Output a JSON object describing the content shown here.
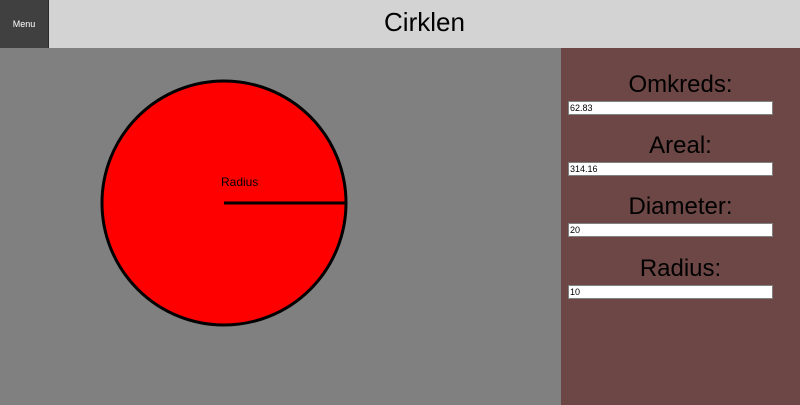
{
  "header": {
    "menu_label": "Menu",
    "title": "Cirklen"
  },
  "circle": {
    "radius_label": "Radius",
    "fill_color": "#ff0000",
    "stroke_color": "#000000"
  },
  "panel": {
    "fields": [
      {
        "label": "Omkreds:",
        "value": "62.83"
      },
      {
        "label": "Areal:",
        "value": "314.16"
      },
      {
        "label": "Diameter:",
        "value": "20"
      },
      {
        "label": "Radius:",
        "value": "10"
      }
    ]
  },
  "colors": {
    "header_bg": "#d3d3d3",
    "menu_bg": "#404040",
    "canvas_bg": "#808080",
    "panel_bg": "#6d4745"
  }
}
